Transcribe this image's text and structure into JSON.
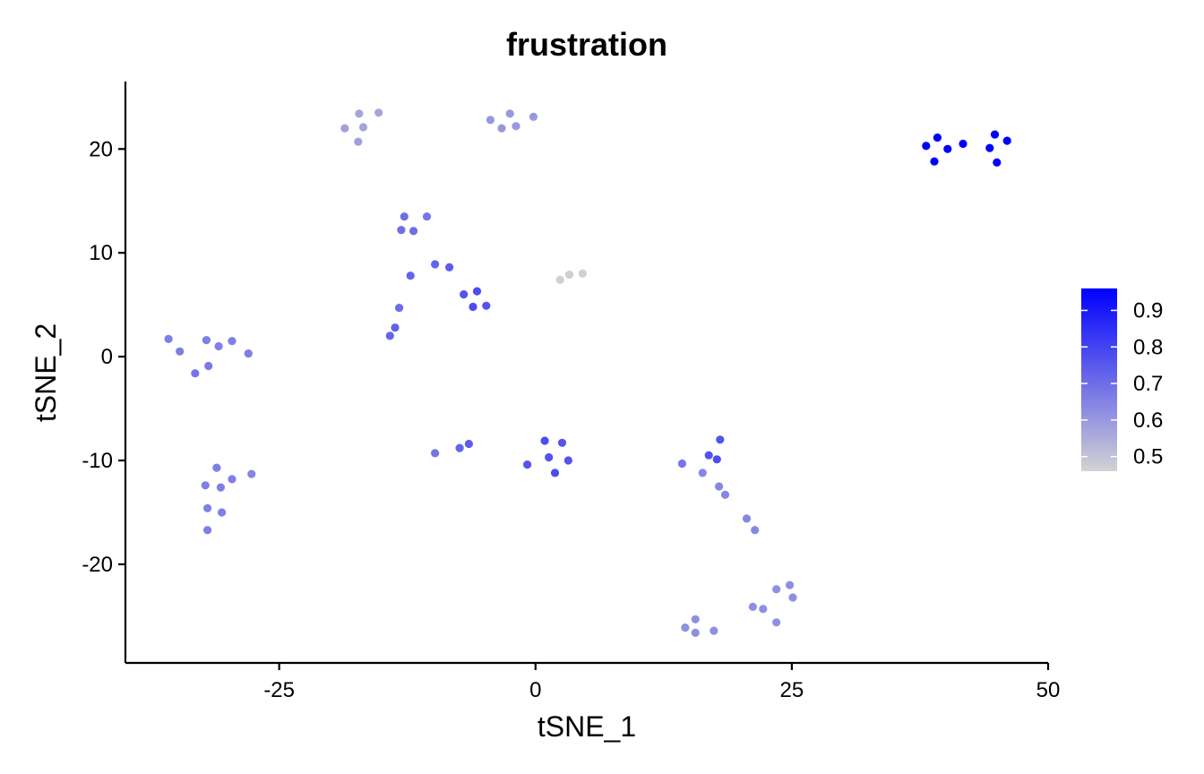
{
  "chart_data": {
    "type": "scatter",
    "title": "frustration",
    "xlabel": "tSNE_1",
    "ylabel": "tSNE_2",
    "xlim": [
      -40,
      50
    ],
    "ylim": [
      -29.5,
      26.5
    ],
    "x_ticks": [
      -25,
      0,
      25,
      50
    ],
    "y_ticks": [
      -20,
      -10,
      0,
      10,
      20
    ],
    "x_tick_labels": [
      "-25",
      "0",
      "25",
      "50"
    ],
    "y_tick_labels": [
      "-20",
      "-10",
      "0",
      "10",
      "20"
    ],
    "grid": false,
    "legend": {
      "placement": "right",
      "min": 0.46,
      "max": 0.96,
      "ticks": [
        0.5,
        0.6,
        0.7,
        0.8,
        0.9
      ],
      "tick_labels": [
        "0.5",
        "0.6",
        "0.7",
        "0.8",
        "0.9"
      ],
      "low_color": "#d3d3d3",
      "high_color": "#0000ff"
    },
    "points": [
      {
        "x": -17.2,
        "y": 23.4,
        "value": 0.57
      },
      {
        "x": -15.3,
        "y": 23.5,
        "value": 0.57
      },
      {
        "x": -18.6,
        "y": 22.0,
        "value": 0.58
      },
      {
        "x": -16.8,
        "y": 22.1,
        "value": 0.57
      },
      {
        "x": -17.3,
        "y": 20.7,
        "value": 0.58
      },
      {
        "x": -4.4,
        "y": 22.8,
        "value": 0.6
      },
      {
        "x": -2.5,
        "y": 23.4,
        "value": 0.6
      },
      {
        "x": -0.2,
        "y": 23.1,
        "value": 0.6
      },
      {
        "x": -3.3,
        "y": 22.0,
        "value": 0.6
      },
      {
        "x": -1.9,
        "y": 22.2,
        "value": 0.6
      },
      {
        "x": 38.1,
        "y": 20.3,
        "value": 0.96
      },
      {
        "x": 39.2,
        "y": 21.1,
        "value": 0.96
      },
      {
        "x": 40.2,
        "y": 20.0,
        "value": 0.96
      },
      {
        "x": 41.7,
        "y": 20.5,
        "value": 0.96
      },
      {
        "x": 38.9,
        "y": 18.8,
        "value": 0.96
      },
      {
        "x": 44.3,
        "y": 20.1,
        "value": 0.96
      },
      {
        "x": 44.8,
        "y": 21.4,
        "value": 0.96
      },
      {
        "x": 46.0,
        "y": 20.8,
        "value": 0.96
      },
      {
        "x": 45.0,
        "y": 18.7,
        "value": 0.96
      },
      {
        "x": -12.8,
        "y": 13.5,
        "value": 0.7
      },
      {
        "x": -10.6,
        "y": 13.5,
        "value": 0.68
      },
      {
        "x": -13.1,
        "y": 12.2,
        "value": 0.7
      },
      {
        "x": -11.9,
        "y": 12.1,
        "value": 0.7
      },
      {
        "x": -9.8,
        "y": 8.9,
        "value": 0.72
      },
      {
        "x": -8.4,
        "y": 8.6,
        "value": 0.74
      },
      {
        "x": -12.2,
        "y": 7.8,
        "value": 0.72
      },
      {
        "x": -13.3,
        "y": 4.7,
        "value": 0.7
      },
      {
        "x": -13.7,
        "y": 2.8,
        "value": 0.73
      },
      {
        "x": -14.2,
        "y": 2.0,
        "value": 0.72
      },
      {
        "x": -7.0,
        "y": 6.0,
        "value": 0.76
      },
      {
        "x": -5.7,
        "y": 6.3,
        "value": 0.78
      },
      {
        "x": -6.1,
        "y": 4.8,
        "value": 0.78
      },
      {
        "x": -4.8,
        "y": 4.9,
        "value": 0.76
      },
      {
        "x": 2.4,
        "y": 7.4,
        "value": 0.47
      },
      {
        "x": 3.3,
        "y": 7.9,
        "value": 0.47
      },
      {
        "x": 4.6,
        "y": 8.0,
        "value": 0.47
      },
      {
        "x": -35.8,
        "y": 1.7,
        "value": 0.66
      },
      {
        "x": -34.7,
        "y": 0.5,
        "value": 0.66
      },
      {
        "x": -32.1,
        "y": 1.6,
        "value": 0.66
      },
      {
        "x": -30.9,
        "y": 1.0,
        "value": 0.66
      },
      {
        "x": -29.6,
        "y": 1.5,
        "value": 0.66
      },
      {
        "x": -28.0,
        "y": 0.3,
        "value": 0.66
      },
      {
        "x": -31.9,
        "y": -0.9,
        "value": 0.67
      },
      {
        "x": -33.2,
        "y": -1.6,
        "value": 0.68
      },
      {
        "x": -9.8,
        "y": -9.3,
        "value": 0.68
      },
      {
        "x": -7.4,
        "y": -8.8,
        "value": 0.72
      },
      {
        "x": -6.5,
        "y": -8.4,
        "value": 0.74
      },
      {
        "x": 0.9,
        "y": -8.1,
        "value": 0.78
      },
      {
        "x": 2.6,
        "y": -8.3,
        "value": 0.76
      },
      {
        "x": 1.3,
        "y": -9.7,
        "value": 0.76
      },
      {
        "x": 3.2,
        "y": -10.0,
        "value": 0.76
      },
      {
        "x": -0.8,
        "y": -10.4,
        "value": 0.76
      },
      {
        "x": 1.9,
        "y": -11.2,
        "value": 0.78
      },
      {
        "x": -31.1,
        "y": -10.7,
        "value": 0.66
      },
      {
        "x": -27.7,
        "y": -11.3,
        "value": 0.64
      },
      {
        "x": -29.6,
        "y": -11.8,
        "value": 0.66
      },
      {
        "x": -32.2,
        "y": -12.4,
        "value": 0.66
      },
      {
        "x": -30.7,
        "y": -12.6,
        "value": 0.66
      },
      {
        "x": -32.0,
        "y": -14.6,
        "value": 0.66
      },
      {
        "x": -30.6,
        "y": -15.0,
        "value": 0.66
      },
      {
        "x": -32.0,
        "y": -16.7,
        "value": 0.66
      },
      {
        "x": 18.0,
        "y": -8.0,
        "value": 0.76
      },
      {
        "x": 16.9,
        "y": -9.5,
        "value": 0.76
      },
      {
        "x": 17.7,
        "y": -9.9,
        "value": 0.78
      },
      {
        "x": 14.3,
        "y": -10.3,
        "value": 0.68
      },
      {
        "x": 16.3,
        "y": -11.2,
        "value": 0.64
      },
      {
        "x": 17.9,
        "y": -12.5,
        "value": 0.64
      },
      {
        "x": 18.5,
        "y": -13.3,
        "value": 0.64
      },
      {
        "x": 20.6,
        "y": -15.6,
        "value": 0.64
      },
      {
        "x": 21.4,
        "y": -16.7,
        "value": 0.64
      },
      {
        "x": 24.8,
        "y": -22.0,
        "value": 0.62
      },
      {
        "x": 23.5,
        "y": -22.4,
        "value": 0.62
      },
      {
        "x": 25.1,
        "y": -23.2,
        "value": 0.62
      },
      {
        "x": 21.2,
        "y": -24.1,
        "value": 0.62
      },
      {
        "x": 22.2,
        "y": -24.3,
        "value": 0.62
      },
      {
        "x": 23.5,
        "y": -25.6,
        "value": 0.62
      },
      {
        "x": 15.6,
        "y": -25.3,
        "value": 0.62
      },
      {
        "x": 14.6,
        "y": -26.1,
        "value": 0.62
      },
      {
        "x": 15.6,
        "y": -26.6,
        "value": 0.62
      },
      {
        "x": 17.4,
        "y": -26.4,
        "value": 0.62
      }
    ]
  }
}
